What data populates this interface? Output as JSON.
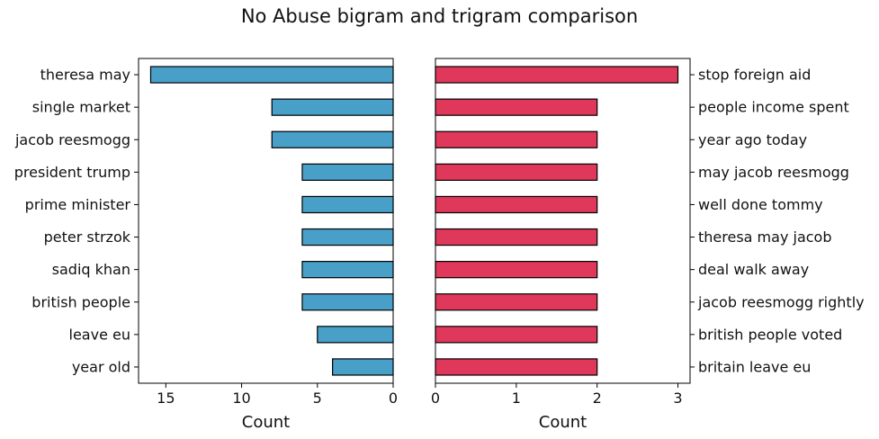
{
  "title": "No Abuse bigram and trigram comparison",
  "chart_data": [
    {
      "type": "bar",
      "orientation": "horizontal",
      "x_direction": "inverted",
      "categories": [
        "theresa may",
        "single market",
        "jacob reesmogg",
        "president trump",
        "prime minister",
        "peter strzok",
        "sadiq khan",
        "british people",
        "leave eu",
        "year old"
      ],
      "values": [
        16,
        8,
        8,
        6,
        6,
        6,
        6,
        6,
        5,
        4
      ],
      "xlabel": "Count",
      "ylabel": "",
      "xlim": [
        16.8,
        0
      ],
      "xticks": [
        15,
        10,
        5,
        0
      ],
      "tick_labels_side": "left",
      "color": "#48a0c9"
    },
    {
      "type": "bar",
      "orientation": "horizontal",
      "categories": [
        "stop foreign aid",
        "people income spent",
        "year ago today",
        "may jacob reesmogg",
        "well done tommy",
        "theresa may jacob",
        "deal walk away",
        "jacob reesmogg rightly",
        "british people voted",
        "britain leave eu"
      ],
      "values": [
        3,
        2,
        2,
        2,
        2,
        2,
        2,
        2,
        2,
        2
      ],
      "xlabel": "Count",
      "ylabel": "",
      "xlim": [
        0,
        3.15
      ],
      "xticks": [
        0,
        1,
        2,
        3
      ],
      "tick_labels_side": "right",
      "color": "#e0385a"
    }
  ]
}
